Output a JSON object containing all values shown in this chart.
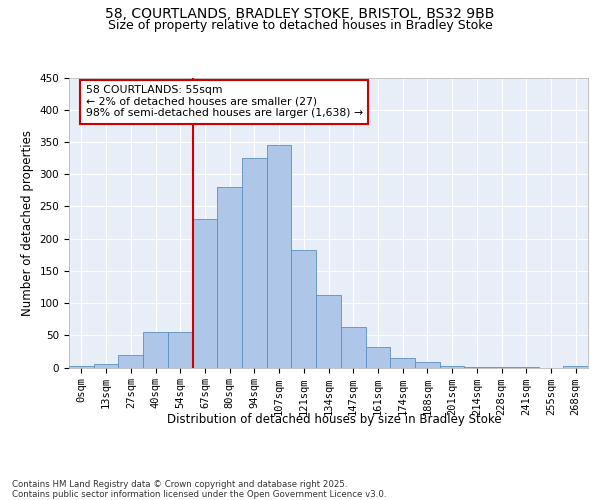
{
  "title_line1": "58, COURTLANDS, BRADLEY STOKE, BRISTOL, BS32 9BB",
  "title_line2": "Size of property relative to detached houses in Bradley Stoke",
  "xlabel": "Distribution of detached houses by size in Bradley Stoke",
  "ylabel": "Number of detached properties",
  "bar_labels": [
    "0sqm",
    "13sqm",
    "27sqm",
    "40sqm",
    "54sqm",
    "67sqm",
    "80sqm",
    "94sqm",
    "107sqm",
    "121sqm",
    "134sqm",
    "147sqm",
    "161sqm",
    "174sqm",
    "188sqm",
    "201sqm",
    "214sqm",
    "228sqm",
    "241sqm",
    "255sqm",
    "268sqm"
  ],
  "bar_values": [
    2,
    5,
    20,
    55,
    55,
    230,
    280,
    325,
    345,
    183,
    112,
    63,
    32,
    15,
    8,
    2,
    1,
    1,
    1,
    0,
    2
  ],
  "bar_color": "#aec6e8",
  "bar_edge_color": "#5a8fc0",
  "vline_index": 4,
  "vline_color": "#cc0000",
  "annotation_box_text": "58 COURTLANDS: 55sqm\n← 2% of detached houses are smaller (27)\n98% of semi-detached houses are larger (1,638) →",
  "annotation_box_color": "#cc0000",
  "annotation_box_fill": "#ffffff",
  "background_color": "#e8eef8",
  "grid_color": "#ffffff",
  "ylim": [
    0,
    450
  ],
  "yticks": [
    0,
    50,
    100,
    150,
    200,
    250,
    300,
    350,
    400,
    450
  ],
  "footnote": "Contains HM Land Registry data © Crown copyright and database right 2025.\nContains public sector information licensed under the Open Government Licence v3.0.",
  "title_fontsize": 10,
  "subtitle_fontsize": 9,
  "axis_label_fontsize": 8.5,
  "tick_fontsize": 7.5
}
